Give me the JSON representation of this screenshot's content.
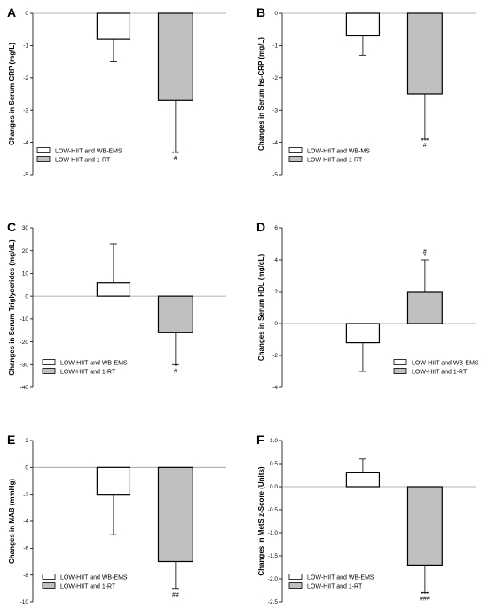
{
  "chart_data": [
    {
      "type": "bar",
      "panel_letter": "A",
      "ylabel": "Changes in Serum CRP (mg/L)",
      "ylim": [
        -5,
        0
      ],
      "yticks": [
        0,
        -1,
        -2,
        -3,
        -4,
        -5
      ],
      "ytick_labels": [
        "0",
        "-1",
        "-2",
        "-3",
        "-4",
        "-5"
      ],
      "legend_placement": "bottom-left",
      "series": [
        {
          "name": "LOW-HIIT and WB-EMS",
          "value": -0.8,
          "error": 0.7,
          "fill": "#ffffff"
        },
        {
          "name": "LOW-HIIT and 1-RT",
          "value": -2.7,
          "error": 1.6,
          "fill": "#c0c0c0"
        }
      ],
      "annotations": [
        {
          "series": 1,
          "lines": [
            "***",
            "#"
          ]
        }
      ]
    },
    {
      "type": "bar",
      "panel_letter": "B",
      "ylabel": "Changes in Serum hs-CRP (mg/L)",
      "ylim": [
        -5,
        0
      ],
      "yticks": [
        0,
        -1,
        -2,
        -3,
        -4,
        -5
      ],
      "ytick_labels": [
        "0",
        "-1",
        "-2",
        "-3",
        "-4",
        "-5"
      ],
      "legend_placement": "bottom-left",
      "series": [
        {
          "name": "LOW-HIIT and WB-MS",
          "value": -0.7,
          "error": 0.6,
          "fill": "#ffffff"
        },
        {
          "name": "LOW-HIIT and 1-RT",
          "value": -2.5,
          "error": 1.4,
          "fill": "#c0c0c0"
        }
      ],
      "annotations": [
        {
          "series": 1,
          "lines": [
            "***",
            "#"
          ]
        }
      ]
    },
    {
      "type": "bar",
      "panel_letter": "C",
      "ylabel": "Changes in Serum Triglycerides (mg/dL)",
      "ylim": [
        -40,
        30
      ],
      "yticks": [
        30,
        20,
        10,
        0,
        -10,
        -20,
        -30,
        -40
      ],
      "ytick_labels": [
        "30",
        "20",
        "10",
        "0",
        "-10",
        "-20",
        "-30",
        "-40"
      ],
      "legend_placement": "bottom-left",
      "series": [
        {
          "name": "LOW-HIIT and WB-EMS",
          "value": 6,
          "error": 17,
          "fill": "#ffffff"
        },
        {
          "name": "LOW-HIIT and 1-RT",
          "value": -16,
          "error": 14,
          "fill": "#c0c0c0"
        }
      ],
      "annotations": [
        {
          "series": 1,
          "lines": [
            "*",
            "#"
          ]
        }
      ]
    },
    {
      "type": "bar",
      "panel_letter": "D",
      "ylabel": "Changes in Serum HDL (mg/dL)",
      "ylim": [
        -4,
        6
      ],
      "yticks": [
        6,
        4,
        2,
        0,
        -2,
        -4
      ],
      "ytick_labels": [
        "6",
        "4",
        "2",
        "0",
        "-2",
        "-4"
      ],
      "legend_placement": "bottom-right",
      "series": [
        {
          "name": "LOW-HIIT and WB-EMS",
          "value": -1.2,
          "error": 1.8,
          "fill": "#ffffff"
        },
        {
          "name": "LOW-HIIT and 1-RT",
          "value": 2,
          "error": 2,
          "fill": "#c0c0c0"
        }
      ],
      "annotations": [
        {
          "series": 1,
          "lines": [
            "#",
            "*"
          ]
        }
      ]
    },
    {
      "type": "bar",
      "panel_letter": "E",
      "ylabel": "Changes in MAB (mmHg)",
      "ylim": [
        -10,
        2
      ],
      "yticks": [
        2,
        0,
        -2,
        -4,
        -6,
        -8,
        -10
      ],
      "ytick_labels": [
        "2",
        "0",
        "-2",
        "-4",
        "-6",
        "-8",
        "-10"
      ],
      "legend_placement": "bottom-left",
      "series": [
        {
          "name": "LOW-HIIT and WB-EMS",
          "value": -2,
          "error": 3,
          "fill": "#ffffff"
        },
        {
          "name": "LOW-HIIT and 1-RT",
          "value": -7,
          "error": 2,
          "fill": "#c0c0c0"
        }
      ],
      "annotations": [
        {
          "series": 1,
          "lines": [
            "***",
            "##"
          ]
        }
      ]
    },
    {
      "type": "bar",
      "panel_letter": "F",
      "ylabel": "Changes in MetS z-Score (Units)",
      "ylim": [
        -2.5,
        1.0
      ],
      "yticks": [
        1.0,
        0.5,
        0.0,
        -0.5,
        -1.0,
        -1.5,
        -2.0,
        -2.5
      ],
      "ytick_labels": [
        "1.0",
        "0.5",
        "0.0",
        "-0.5",
        "-1.0",
        "-1.5",
        "-2.0",
        "-2.5"
      ],
      "legend_placement": "bottom-left",
      "series": [
        {
          "name": "LOW-HIIT and WB-EMS",
          "value": 0.3,
          "error": 0.3,
          "fill": "#ffffff"
        },
        {
          "name": "LOW-HIIT and 1-RT",
          "value": -1.7,
          "error": 0.6,
          "fill": "#c0c0c0"
        }
      ],
      "annotations": [
        {
          "series": 1,
          "lines": [
            "***",
            "###"
          ]
        }
      ]
    }
  ]
}
